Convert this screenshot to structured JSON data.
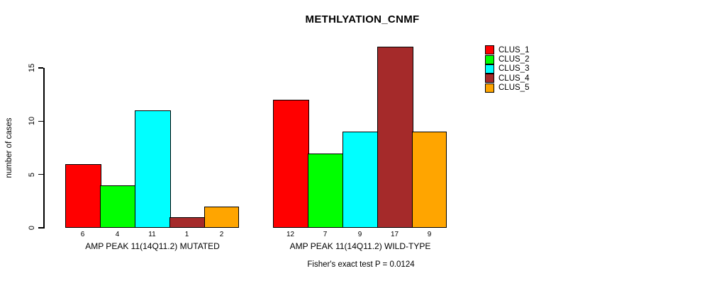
{
  "chart_data": {
    "type": "bar",
    "title": "METHLYATION_CNMF",
    "ylabel": "number of cases",
    "xlabel": "",
    "yticks": [
      0,
      5,
      10,
      15
    ],
    "ylim": [
      0,
      17
    ],
    "grid": false,
    "legend_position": "right",
    "categories": [
      "CLUS_1",
      "CLUS_2",
      "CLUS_3",
      "CLUS_4",
      "CLUS_5"
    ],
    "series_colors": [
      "#FF0000",
      "#00FF00",
      "#00FFFF",
      "#A52A2A",
      "#FFA500"
    ],
    "groups": [
      {
        "label": "AMP PEAK 11(14Q11.2) MUTATED",
        "values": [
          6,
          4,
          11,
          1,
          2
        ]
      },
      {
        "label": "AMP PEAK 11(14Q11.2) WILD-TYPE",
        "values": [
          12,
          7,
          9,
          17,
          9
        ]
      }
    ],
    "legend": [
      {
        "label": "CLUS_1",
        "color": "#FF0000"
      },
      {
        "label": "CLUS_2",
        "color": "#00FF00"
      },
      {
        "label": "CLUS_3",
        "color": "#00FFFF"
      },
      {
        "label": "CLUS_4",
        "color": "#A52A2A"
      },
      {
        "label": "CLUS_5",
        "color": "#FFA500"
      }
    ],
    "annotation": "Fisher's exact test P = 0.0124",
    "axis_color": "#000000",
    "background": "#FFFFFF"
  }
}
